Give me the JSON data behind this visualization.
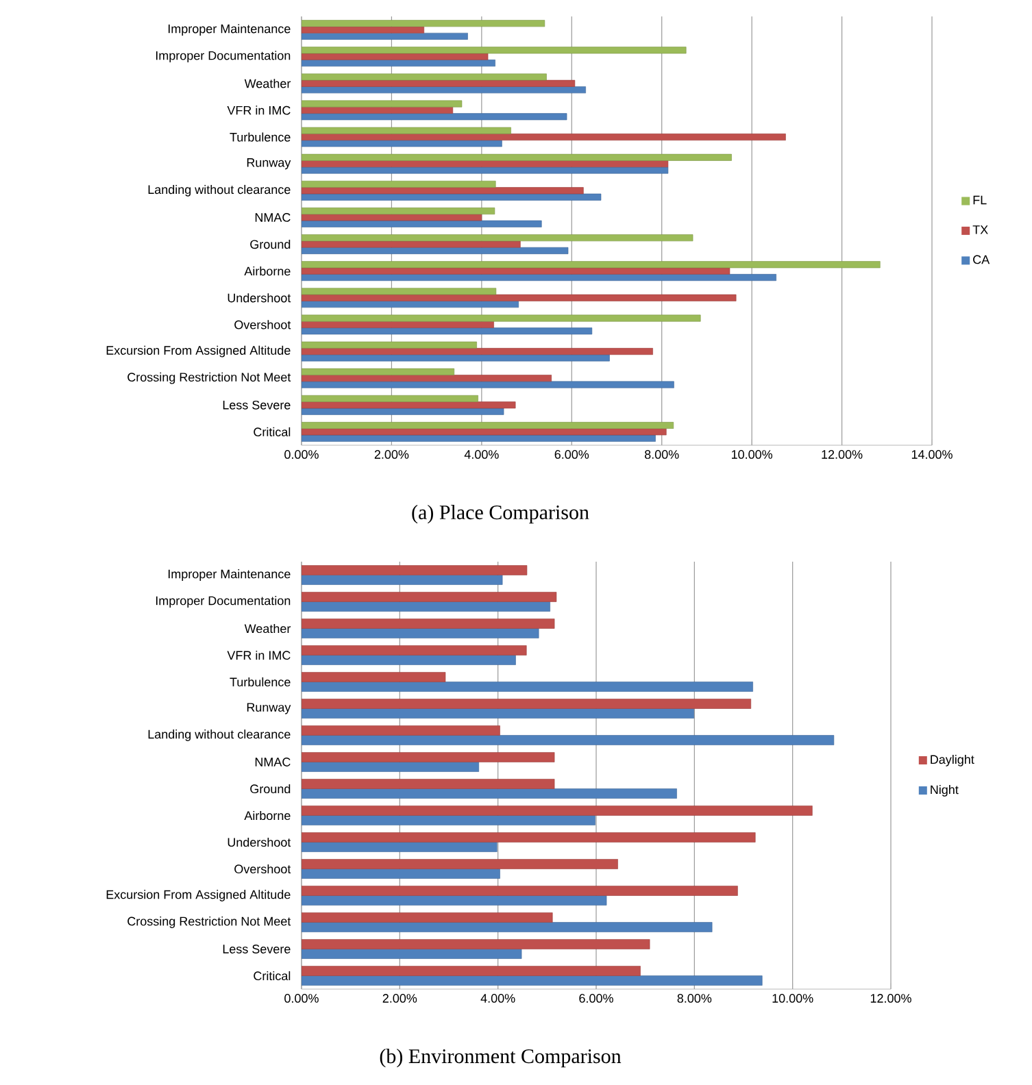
{
  "chart_data": [
    {
      "type": "bar",
      "orientation": "horizontal",
      "title": "(a) Place Comparison",
      "categories": [
        "Improper Maintenance",
        "Improper Documentation",
        "Weather",
        "VFR in IMC",
        "Turbulence",
        "Runway",
        "Landing without clearance",
        "NMAC",
        "Ground",
        "Airborne",
        "Undershoot",
        "Overshoot",
        "Excursion From Assigned Altitude",
        "Crossing Restriction Not Meet",
        "Less Severe",
        "Critical"
      ],
      "series": [
        {
          "name": "FL",
          "color": "#9bbb59",
          "values": [
            5.4,
            8.54,
            5.44,
            3.56,
            4.65,
            9.55,
            4.31,
            4.29,
            8.69,
            12.85,
            4.32,
            8.86,
            3.89,
            3.39,
            3.92,
            8.26
          ]
        },
        {
          "name": "TX",
          "color": "#c0504d",
          "values": [
            2.72,
            4.14,
            6.07,
            3.36,
            10.75,
            8.14,
            6.26,
            4.0,
            4.86,
            9.51,
            9.65,
            4.27,
            7.8,
            5.55,
            4.75,
            8.1
          ]
        },
        {
          "name": "CA",
          "color": "#4f81bd",
          "values": [
            3.69,
            4.3,
            6.31,
            5.89,
            4.45,
            8.14,
            6.65,
            5.33,
            5.92,
            10.54,
            4.82,
            6.45,
            6.84,
            8.27,
            4.49,
            7.86
          ]
        }
      ],
      "xlim": [
        0,
        14
      ],
      "xticks": [
        {
          "value": 0,
          "label": "0.00%"
        },
        {
          "value": 2,
          "label": "2.00%"
        },
        {
          "value": 4,
          "label": "4.00%"
        },
        {
          "value": 6,
          "label": "6.00%"
        },
        {
          "value": 8,
          "label": "8.00%"
        },
        {
          "value": 10,
          "label": "10.00%"
        },
        {
          "value": 12,
          "label": "12.00%"
        },
        {
          "value": 14,
          "label": "14.00%"
        }
      ],
      "grid": "x",
      "legend": "right"
    },
    {
      "type": "bar",
      "orientation": "horizontal",
      "title": "(b) Environment Comparison",
      "categories": [
        "Improper Maintenance",
        "Improper Documentation",
        "Weather",
        "VFR in IMC",
        "Turbulence",
        "Runway",
        "Landing without clearance",
        "NMAC",
        "Ground",
        "Airborne",
        "Undershoot",
        "Overshoot",
        "Excursion From Assigned Altitude",
        "Crossing Restriction Not Meet",
        "Less Severe",
        "Critical"
      ],
      "series": [
        {
          "name": "Daylight",
          "color": "#c0504d",
          "values": [
            4.59,
            5.19,
            5.15,
            4.58,
            2.93,
            9.15,
            4.04,
            5.15,
            5.15,
            10.4,
            9.24,
            6.44,
            8.88,
            5.11,
            7.09,
            6.9
          ]
        },
        {
          "name": "Night",
          "color": "#4f81bd",
          "values": [
            4.09,
            5.06,
            4.83,
            4.36,
            9.19,
            7.99,
            10.84,
            3.61,
            7.64,
            5.98,
            3.98,
            4.04,
            6.21,
            8.36,
            4.48,
            9.38
          ]
        }
      ],
      "xlim": [
        0,
        12
      ],
      "xticks": [
        {
          "value": 0,
          "label": "0.00%"
        },
        {
          "value": 2,
          "label": "2.00%"
        },
        {
          "value": 4,
          "label": "4.00%"
        },
        {
          "value": 6,
          "label": "6.00%"
        },
        {
          "value": 8,
          "label": "8.00%"
        },
        {
          "value": 10,
          "label": "10.00%"
        },
        {
          "value": 12,
          "label": "12.00%"
        }
      ],
      "grid": "x",
      "legend": "right"
    }
  ]
}
